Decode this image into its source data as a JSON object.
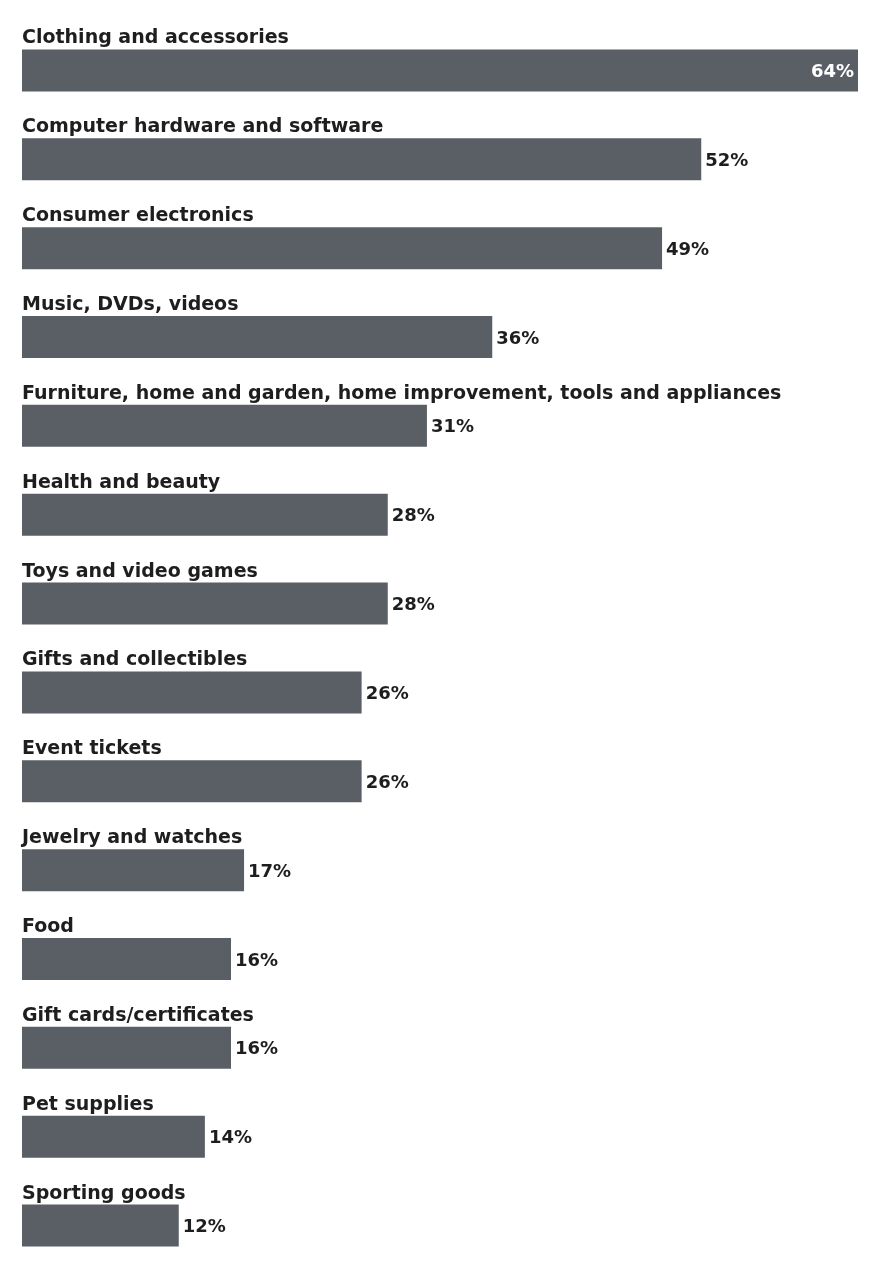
{
  "chart_data": {
    "type": "bar",
    "orientation": "horizontal",
    "color": "#5a5f66",
    "categories": [
      "Clothing and accessories",
      "Computer hardware and software",
      "Consumer electronics",
      "Music, DVDs, videos",
      "Furniture, home and garden, home improvement, tools and appliances",
      "Health and beauty",
      "Toys and video games",
      "Gifts and collectibles",
      "Event tickets",
      "Jewelry and watches",
      "Food",
      "Gift cards/certificates",
      "Pet supplies",
      "Sporting goods"
    ],
    "values": [
      64,
      52,
      49,
      36,
      31,
      28,
      28,
      26,
      26,
      17,
      16,
      16,
      14,
      12
    ],
    "value_labels": [
      "64%",
      "52%",
      "49%",
      "36%",
      "31%",
      "28%",
      "28%",
      "26%",
      "26%",
      "17%",
      "16%",
      "16%",
      "14%",
      "12%"
    ]
  }
}
